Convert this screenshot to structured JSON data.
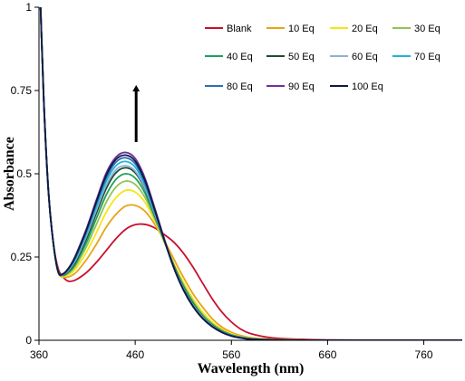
{
  "chart_data": {
    "type": "line",
    "xlabel": "Wavelength  (nm)",
    "ylabel": "Absorbance",
    "xlim": [
      360,
      800
    ],
    "ylim": [
      0,
      1
    ],
    "x_ticks": [
      "360",
      "460",
      "560",
      "660",
      "760"
    ],
    "y_ticks": [
      "0",
      "0.25",
      "0.5",
      "0.75",
      "1"
    ],
    "grid": false,
    "legend_placement": "top-right",
    "annotation": "upward arrow above the absorption peak near 460 nm",
    "x": [
      360,
      365,
      370,
      375,
      380,
      385,
      390,
      395,
      400,
      410,
      420,
      430,
      440,
      450,
      460,
      470,
      480,
      490,
      500,
      510,
      520,
      530,
      540,
      550,
      560,
      570,
      580,
      600,
      620,
      640,
      660,
      700,
      760,
      800
    ],
    "series": [
      {
        "name": "Blank",
        "color": "#c8102e",
        "values": [
          1.15,
          0.72,
          0.44,
          0.29,
          0.215,
          0.19,
          0.178,
          0.178,
          0.184,
          0.205,
          0.235,
          0.27,
          0.305,
          0.333,
          0.347,
          0.348,
          0.338,
          0.318,
          0.295,
          0.262,
          0.22,
          0.172,
          0.125,
          0.085,
          0.055,
          0.033,
          0.02,
          0.008,
          0.004,
          0.002,
          0.001,
          0.0,
          0.0,
          0.0
        ]
      },
      {
        "name": "10 Eq",
        "color": "#e8a317",
        "values": [
          1.15,
          0.72,
          0.44,
          0.29,
          0.205,
          0.19,
          0.19,
          0.196,
          0.208,
          0.245,
          0.29,
          0.34,
          0.378,
          0.403,
          0.405,
          0.388,
          0.35,
          0.3,
          0.245,
          0.19,
          0.14,
          0.1,
          0.065,
          0.04,
          0.024,
          0.014,
          0.008,
          0.003,
          0.001,
          0.0,
          0.0,
          0.0,
          0.0,
          0.0
        ]
      },
      {
        "name": "20 Eq",
        "color": "#f5e614",
        "values": [
          1.15,
          0.72,
          0.44,
          0.29,
          0.205,
          0.192,
          0.196,
          0.205,
          0.222,
          0.268,
          0.325,
          0.385,
          0.428,
          0.45,
          0.445,
          0.415,
          0.36,
          0.295,
          0.232,
          0.175,
          0.125,
          0.085,
          0.055,
          0.034,
          0.02,
          0.011,
          0.006,
          0.002,
          0.001,
          0.0,
          0.0,
          0.0,
          0.0,
          0.0
        ]
      },
      {
        "name": "30 Eq",
        "color": "#92c353",
        "values": [
          1.15,
          0.72,
          0.44,
          0.29,
          0.205,
          0.194,
          0.2,
          0.212,
          0.232,
          0.285,
          0.35,
          0.415,
          0.46,
          0.478,
          0.468,
          0.43,
          0.368,
          0.298,
          0.228,
          0.168,
          0.118,
          0.078,
          0.05,
          0.03,
          0.017,
          0.01,
          0.005,
          0.002,
          0.001,
          0.0,
          0.0,
          0.0,
          0.0,
          0.0
        ]
      },
      {
        "name": "40 Eq",
        "color": "#1ea05a",
        "values": [
          1.15,
          0.72,
          0.44,
          0.29,
          0.205,
          0.195,
          0.203,
          0.217,
          0.24,
          0.298,
          0.368,
          0.437,
          0.483,
          0.5,
          0.487,
          0.443,
          0.374,
          0.3,
          0.226,
          0.163,
          0.113,
          0.074,
          0.047,
          0.028,
          0.016,
          0.009,
          0.005,
          0.002,
          0.001,
          0.0,
          0.0,
          0.0,
          0.0,
          0.0
        ]
      },
      {
        "name": "50 Eq",
        "color": "#1f4d2b",
        "values": [
          1.15,
          0.72,
          0.44,
          0.29,
          0.205,
          0.196,
          0.206,
          0.222,
          0.247,
          0.31,
          0.384,
          0.456,
          0.503,
          0.518,
          0.503,
          0.455,
          0.38,
          0.301,
          0.224,
          0.159,
          0.109,
          0.071,
          0.045,
          0.027,
          0.015,
          0.008,
          0.004,
          0.001,
          0.0,
          0.0,
          0.0,
          0.0,
          0.0,
          0.0
        ]
      },
      {
        "name": "60 Eq",
        "color": "#8db0d8",
        "values": [
          1.15,
          0.72,
          0.44,
          0.29,
          0.205,
          0.197,
          0.208,
          0.226,
          0.252,
          0.318,
          0.394,
          0.466,
          0.512,
          0.524,
          0.508,
          0.458,
          0.382,
          0.301,
          0.222,
          0.157,
          0.107,
          0.07,
          0.044,
          0.026,
          0.015,
          0.008,
          0.004,
          0.001,
          0.0,
          0.0,
          0.0,
          0.0,
          0.0,
          0.0
        ]
      },
      {
        "name": "70 Eq",
        "color": "#1fb4d8",
        "values": [
          1.15,
          0.72,
          0.44,
          0.29,
          0.205,
          0.198,
          0.21,
          0.23,
          0.257,
          0.325,
          0.404,
          0.478,
          0.524,
          0.537,
          0.52,
          0.466,
          0.386,
          0.301,
          0.22,
          0.155,
          0.105,
          0.068,
          0.043,
          0.025,
          0.014,
          0.008,
          0.004,
          0.001,
          0.0,
          0.0,
          0.0,
          0.0,
          0.0,
          0.0
        ]
      },
      {
        "name": "80 Eq",
        "color": "#2e6db4",
        "values": [
          1.15,
          0.72,
          0.44,
          0.29,
          0.205,
          0.199,
          0.212,
          0.233,
          0.262,
          0.332,
          0.413,
          0.488,
          0.535,
          0.548,
          0.53,
          0.474,
          0.39,
          0.302,
          0.219,
          0.153,
          0.103,
          0.067,
          0.042,
          0.025,
          0.014,
          0.007,
          0.004,
          0.001,
          0.0,
          0.0,
          0.0,
          0.0,
          0.0,
          0.0
        ]
      },
      {
        "name": "90 Eq",
        "color": "#7030a0",
        "values": [
          1.15,
          0.72,
          0.44,
          0.29,
          0.205,
          0.2,
          0.214,
          0.237,
          0.268,
          0.34,
          0.424,
          0.503,
          0.55,
          0.564,
          0.546,
          0.488,
          0.4,
          0.307,
          0.22,
          0.152,
          0.102,
          0.066,
          0.041,
          0.024,
          0.013,
          0.007,
          0.003,
          0.001,
          0.0,
          0.0,
          0.0,
          0.0,
          0.0,
          0.0
        ]
      },
      {
        "name": "100 Eq",
        "color": "#0d1b3e",
        "values": [
          1.15,
          0.72,
          0.44,
          0.29,
          0.205,
          0.199,
          0.213,
          0.235,
          0.265,
          0.336,
          0.419,
          0.496,
          0.543,
          0.556,
          0.538,
          0.481,
          0.395,
          0.304,
          0.219,
          0.152,
          0.102,
          0.066,
          0.041,
          0.024,
          0.013,
          0.007,
          0.003,
          0.001,
          0.0,
          0.0,
          0.0,
          0.0,
          0.0,
          0.0
        ]
      }
    ]
  }
}
